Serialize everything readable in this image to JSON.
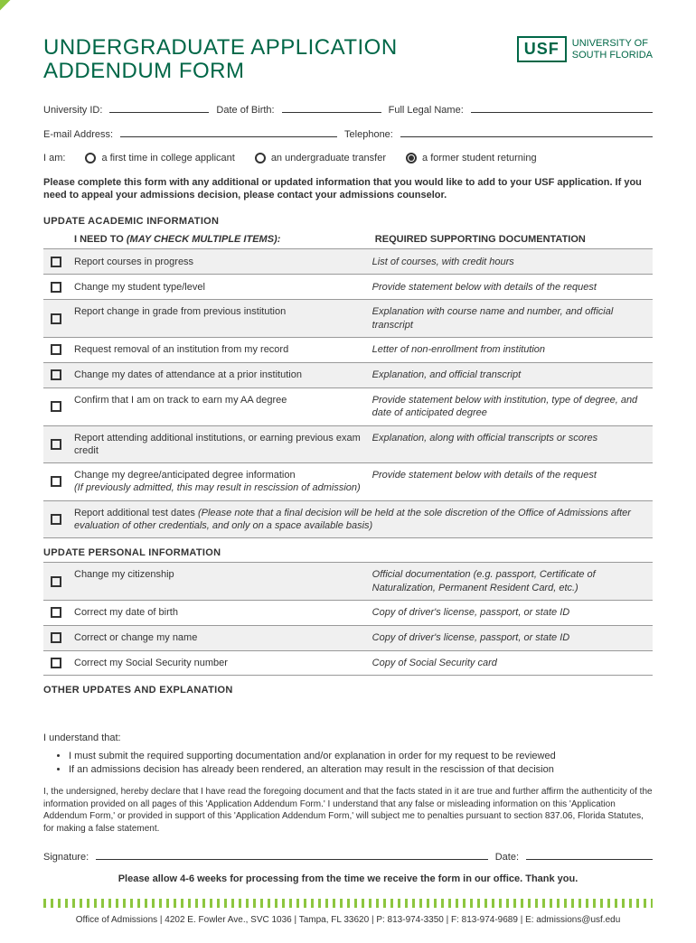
{
  "colors": {
    "brand_green": "#006747",
    "light_green": "#8dc63f",
    "alt_row": "#f0f0f0",
    "border": "#999999"
  },
  "title": "UNDERGRADUATE APPLICATION\nADDENDUM FORM",
  "logo": {
    "abbr": "USF",
    "name1": "UNIVERSITY OF",
    "name2": "SOUTH FLORIDA"
  },
  "fields": {
    "university_id": "University ID:",
    "dob": "Date of Birth:",
    "full_name": "Full Legal Name:",
    "email": "E-mail Address:",
    "telephone": "Telephone:"
  },
  "iam": {
    "label": "I am:",
    "opt1": "a first time in college applicant",
    "opt2": "an undergraduate transfer",
    "opt3": "a former student returning",
    "selected": 3
  },
  "instruction": "Please complete this form with any additional or updated information that you would like to add to your USF application. If you need to appeal your admissions decision, please contact your admissions counselor.",
  "section_academic": "UPDATE ACADEMIC INFORMATION",
  "header_left": "I NEED TO ",
  "header_left_italic": "(MAY CHECK MULTIPLE ITEMS):",
  "header_right": "REQUIRED SUPPORTING DOCUMENTATION",
  "academic_rows": [
    {
      "left": "Report courses in progress",
      "right": "List of courses, with credit hours"
    },
    {
      "left": "Change my student type/level",
      "right": "Provide statement below with details of the request"
    },
    {
      "left": "Report change in grade from previous institution",
      "right": "Explanation with course name and number, and official transcript"
    },
    {
      "left": "Request removal of an institution from my record",
      "right": "Letter of non-enrollment from institution"
    },
    {
      "left": "Change my dates of attendance at a prior institution",
      "right": "Explanation, and official transcript"
    },
    {
      "left": "Confirm that I am on track to earn my AA degree",
      "right": "Provide statement below with institution, type of degree, and date of anticipated degree"
    },
    {
      "left": "Report attending additional institutions, or earning previous exam credit",
      "right": "Explanation, along with official transcripts or scores"
    },
    {
      "left": "Change my degree/anticipated degree information",
      "left_note": "(If previously admitted, this may result in rescission of admission)",
      "right": "Provide statement below with details of the request"
    },
    {
      "full": "Report additional test dates ",
      "full_italic": "(Please note that a final decision will be held at the sole discretion of the Office of Admissions after evaluation of other credentials, and only on a space available basis)"
    }
  ],
  "section_personal": "UPDATE PERSONAL INFORMATION",
  "personal_rows": [
    {
      "left": "Change my citizenship",
      "right": "Official documentation (e.g. passport, Certificate of Naturalization, Permanent Resident Card, etc.)"
    },
    {
      "left": "Correct my date of birth",
      "right": "Copy of driver's license, passport, or state ID"
    },
    {
      "left": "Correct or change my name",
      "right": "Copy of driver's license, passport, or state ID"
    },
    {
      "left": "Correct my Social Security number",
      "right": "Copy of Social Security card"
    }
  ],
  "section_other": "OTHER UPDATES AND EXPLANATION",
  "understand": {
    "intro": "I understand that:",
    "b1": "I must submit the required supporting documentation and/or explanation in order for my request to be reviewed",
    "b2": "If an admissions decision has already been rendered, an alteration may result in the rescission of that decision"
  },
  "declaration": "I, the undersigned, hereby declare that I have read the foregoing document and that the facts stated in it are true and further affirm the authenticity of the information provided on all pages of this 'Application Addendum Form.' I understand that any false or misleading information on this 'Application Addendum Form,' or provided in support of this 'Application Addendum Form,' will subject me to penalties pursuant to section 837.06, Florida Statutes, for making a false statement.",
  "signature_label": "Signature:",
  "date_label": "Date:",
  "closing": "Please allow 4-6 weeks for processing from the time we receive the form in our office. Thank you.",
  "footer": "Office of Admissions  |  4202 E. Fowler Ave., SVC 1036  |  Tampa, FL 33620  |  P: 813-974-3350  |  F: 813-974-9689  |  E: admissions@usf.edu"
}
